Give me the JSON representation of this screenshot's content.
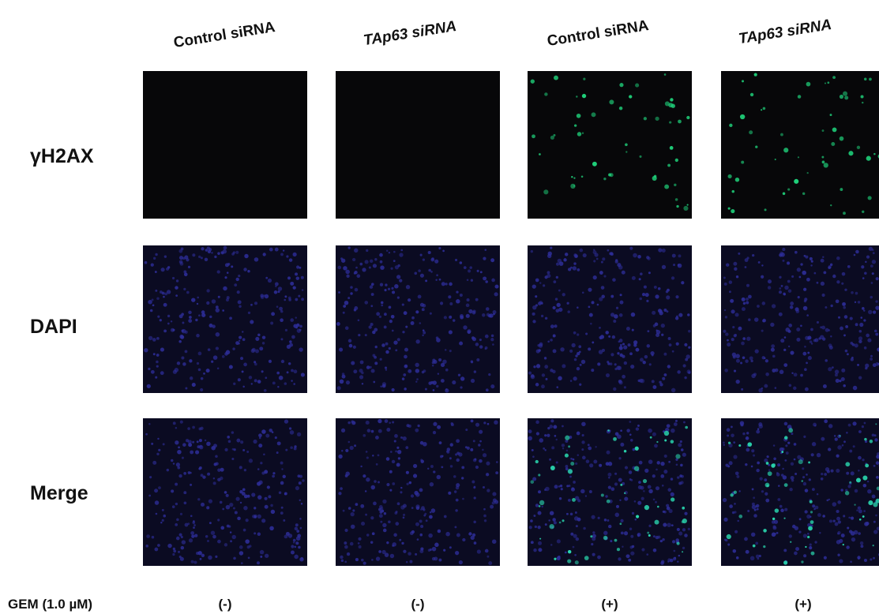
{
  "columns": [
    "Control siRNA",
    "TAp63 siRNA",
    "Control siRNA",
    "TAp63 siRNA"
  ],
  "rows": [
    "γH2AX",
    "DAPI",
    "Merge"
  ],
  "treatment": {
    "label": "GEM (1.0 µM)",
    "values": [
      "(-)",
      "(-)",
      "(+)",
      "(+)"
    ]
  }
}
